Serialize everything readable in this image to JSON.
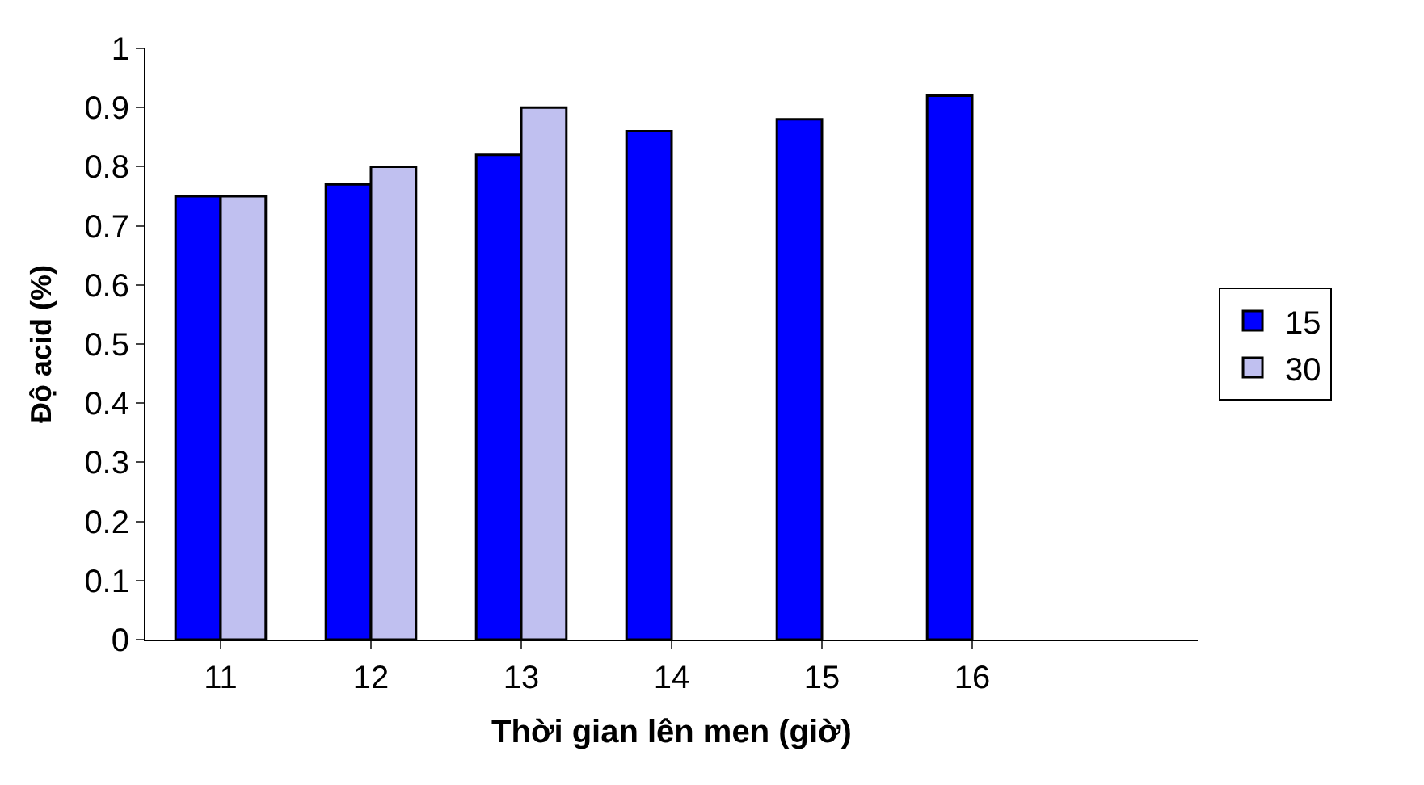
{
  "chart_data": {
    "type": "bar",
    "xlabel": "Thời gian lên men (giờ)",
    "ylabel": "Độ acid (%)",
    "categories": [
      "11",
      "12",
      "13",
      "14",
      "15",
      "16",
      null
    ],
    "series": [
      {
        "name": "15",
        "color": "#0000ff",
        "values": [
          0.75,
          0.77,
          0.82,
          0.86,
          0.88,
          0.92,
          null
        ]
      },
      {
        "name": "30",
        "color": "#c0c0f0",
        "values": [
          0.75,
          0.8,
          0.9,
          null,
          null,
          null,
          null
        ]
      }
    ],
    "ylim": [
      0,
      1
    ],
    "yticks": [
      0,
      0.1,
      0.2,
      0.3,
      0.4,
      0.5,
      0.6,
      0.7,
      0.8,
      0.9,
      1
    ],
    "legend": "right"
  }
}
